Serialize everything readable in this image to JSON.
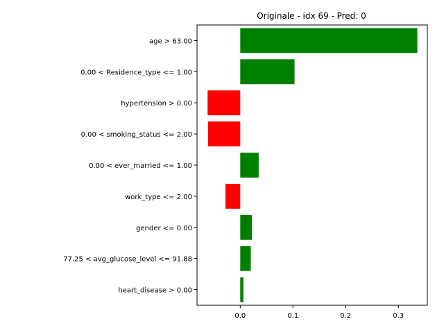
{
  "chart_data": {
    "type": "bar",
    "orientation": "horizontal",
    "title": "Originale - idx 69 - Pred: 0",
    "xlabel": "",
    "ylabel": "",
    "xlim": [
      -0.082,
      0.355
    ],
    "xticks": [
      0.0,
      0.1,
      0.2,
      0.3
    ],
    "xtick_labels": [
      "0.0",
      "0.1",
      "0.2",
      "0.3"
    ],
    "grid": false,
    "categories": [
      "age > 63.00",
      "0.00 < Residence_type <= 1.00",
      "hypertension > 0.00",
      "0.00 < smoking_status <= 2.00",
      "0.00 < ever_married <= 1.00",
      "work_type <= 2.00",
      "gender <= 0.00",
      "77.25 < avg_glucose_level <= 91.88",
      "heart_disease > 0.00"
    ],
    "values": [
      0.336,
      0.103,
      -0.062,
      -0.061,
      0.035,
      -0.028,
      0.022,
      0.02,
      0.006
    ],
    "positive_color": "#008000",
    "negative_color": "#ff0000"
  }
}
